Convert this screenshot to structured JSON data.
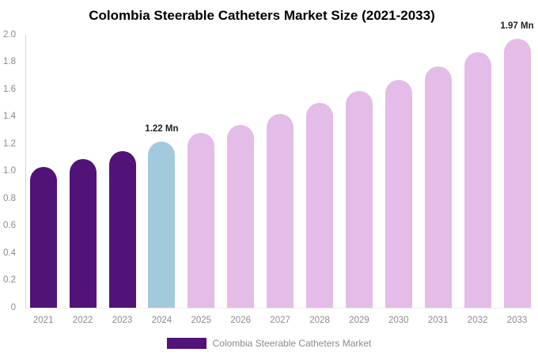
{
  "chart": {
    "title": "Colombia Steerable Catheters Market Size (2021-2033)"
  },
  "legend": {
    "label": "Colombia Steerable Catheters Market",
    "swatch_color": "#511378"
  },
  "colors": {
    "title_text": "#000000",
    "axis_label_text": "#8c8c8c",
    "axis_line": "#d6d6d6",
    "annotation_text": "#222222",
    "historical_bar": "#511378",
    "highlight_bar": "#a3c9dc",
    "forecast_bar": "#e4bce8",
    "background": "#ffffff"
  },
  "chart_data": {
    "type": "bar",
    "title": "Colombia Steerable Catheters Market Size (2021-2033)",
    "unit": "Mn",
    "categories": [
      "2021",
      "2022",
      "2023",
      "2024",
      "2025",
      "2026",
      "2027",
      "2028",
      "2029",
      "2030",
      "2031",
      "2032",
      "2033"
    ],
    "values": [
      1.03,
      1.09,
      1.15,
      1.22,
      1.28,
      1.34,
      1.42,
      1.5,
      1.59,
      1.67,
      1.77,
      1.87,
      1.97
    ],
    "bar_colors": [
      "#511378",
      "#511378",
      "#511378",
      "#a3c9dc",
      "#e4bce8",
      "#e4bce8",
      "#e4bce8",
      "#e4bce8",
      "#e4bce8",
      "#e4bce8",
      "#e4bce8",
      "#e4bce8",
      "#e4bce8"
    ],
    "xlabel": "",
    "ylabel": "",
    "ylim": [
      0,
      2.0
    ],
    "y_tick_labels": [
      "0",
      "0.2",
      "0.4",
      "0.6",
      "0.8",
      "1.0",
      "1.2",
      "1.4",
      "1.6",
      "1.8",
      "2.0"
    ],
    "grid": false,
    "legend_position": "bottom",
    "legend_entries": [
      "Colombia Steerable Catheters Market"
    ],
    "annotations": [
      {
        "index": 3,
        "category": "2024",
        "label": "1.22 Mn"
      },
      {
        "index": 12,
        "category": "2033",
        "label": "1.97 Mn"
      }
    ]
  }
}
